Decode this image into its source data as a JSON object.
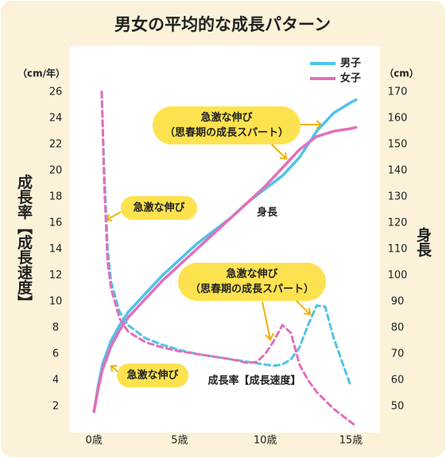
{
  "chart_data": {
    "type": "line",
    "title": "男女の平均的な成長パターン",
    "y_label": "成長率【成長速度】",
    "y_unit": "（cm/年）",
    "y2_label": "身長",
    "y2_unit": "（cm）",
    "xlim": [
      -1.4,
      16.7
    ],
    "xticks": [
      {
        "value": 0,
        "label": "0歳"
      },
      {
        "value": 5,
        "label": "5歳"
      },
      {
        "value": 10,
        "label": "10歳"
      },
      {
        "value": 15,
        "label": "15歳"
      }
    ],
    "ylim": [
      0,
      29.5
    ],
    "yticks": [
      2,
      4,
      6,
      8,
      10,
      12,
      14,
      16,
      18,
      20,
      22,
      24,
      26
    ],
    "y2lim": [
      40,
      187.5
    ],
    "y2ticks": [
      50,
      60,
      70,
      80,
      90,
      100,
      110,
      120,
      130,
      140,
      150,
      160,
      170
    ],
    "series": [
      {
        "name": "男子",
        "color": "#4ec3ea",
        "axis": "y2",
        "x": [
          0,
          0.25,
          0.5,
          1,
          1.5,
          2,
          3,
          4,
          5,
          6,
          7,
          8,
          9,
          10,
          11,
          12,
          13,
          14,
          15,
          15.3
        ],
        "values": [
          48,
          58,
          66,
          75,
          81,
          86,
          93,
          100,
          106,
          112,
          117,
          122,
          128,
          133,
          138,
          145,
          155,
          162,
          166,
          167
        ]
      },
      {
        "name": "女子",
        "color": "#e36fb8",
        "axis": "y2",
        "x": [
          0,
          0.25,
          0.5,
          1,
          1.5,
          2,
          3,
          4,
          5,
          6,
          7,
          8,
          9,
          10,
          11,
          12,
          13,
          14,
          15,
          15.3
        ],
        "values": [
          48,
          57,
          64,
          73,
          79,
          84,
          91,
          98,
          104,
          110,
          116,
          122,
          128,
          134,
          141,
          148,
          153,
          155,
          156,
          156.5
        ]
      },
      {
        "color": "#4ec3ea",
        "dash": true,
        "x": [
          0.45,
          0.6,
          0.8,
          1,
          1.5,
          2,
          3,
          4,
          5,
          6,
          7,
          8,
          9,
          10,
          10.5,
          11,
          11.5,
          12,
          12.5,
          13,
          13.5,
          14,
          15
        ],
        "values": [
          26,
          20,
          14,
          11.5,
          9.2,
          8.2,
          7.2,
          6.7,
          6.3,
          6,
          5.8,
          5.6,
          5.4,
          5.2,
          5.1,
          5.2,
          5.6,
          6.5,
          8.2,
          9.7,
          9.6,
          7.2,
          3.5
        ]
      },
      {
        "color": "#e36fb8",
        "dash": true,
        "x": [
          0.45,
          0.6,
          0.8,
          1,
          1.5,
          2,
          3,
          4,
          5,
          6,
          7,
          8,
          9,
          9.5,
          10,
          10.5,
          11,
          11.5,
          12,
          12.5,
          13,
          14,
          15.3
        ],
        "values": [
          26,
          19,
          13,
          11,
          8.7,
          7.7,
          6.9,
          6.5,
          6.2,
          6,
          5.8,
          5.6,
          5.3,
          5.4,
          6,
          7,
          8.2,
          7.6,
          5.2,
          4,
          3.1,
          1.8,
          0.5
        ]
      }
    ],
    "annotations": [
      {
        "lines": [
          "急激な伸び",
          "（思春期の成長スパート）"
        ]
      },
      {
        "lines": [
          "急激な伸び"
        ]
      },
      {
        "lines": [
          "急激な伸び",
          "（思春期の成長スパート）"
        ]
      },
      {
        "lines": [
          "急激な伸び"
        ]
      }
    ],
    "labels": [
      "身長",
      "成長率【成長速度】"
    ]
  }
}
